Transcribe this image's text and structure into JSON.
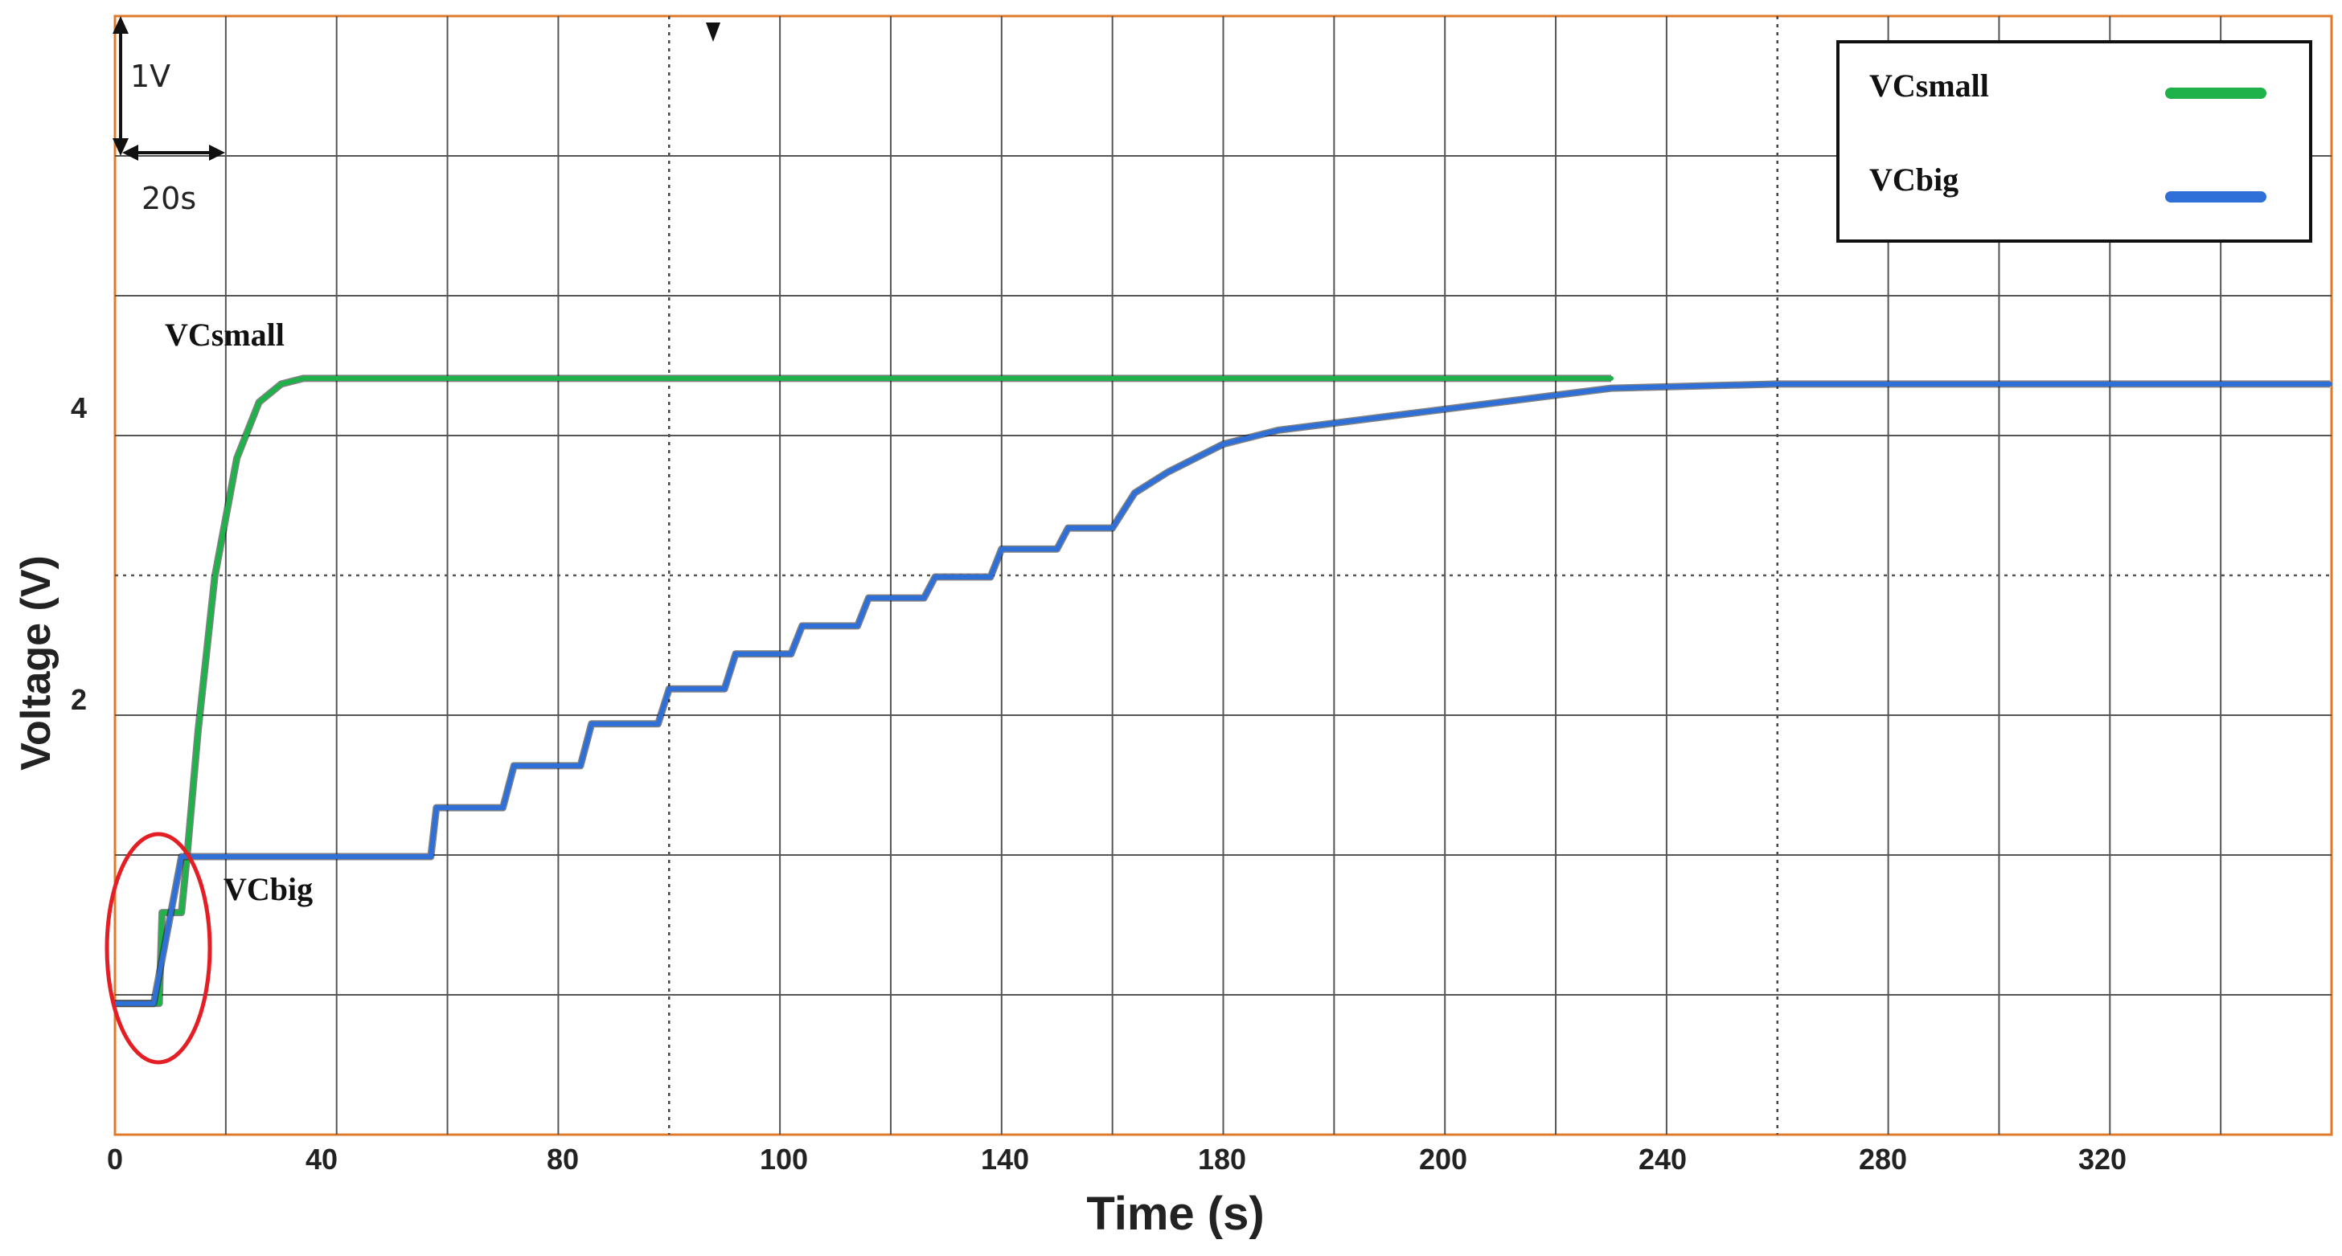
{
  "chart_data": {
    "type": "line",
    "xlabel": "Time (s)",
    "ylabel": "Voltage  (V)",
    "x_ticks": [
      "0",
      "40",
      "80",
      "100",
      "140",
      "180",
      "200",
      "240",
      "280",
      "320"
    ],
    "y_ticks": [
      "4",
      "2"
    ],
    "scale": {
      "voltage_per_div": "1V",
      "time_per_div": "20s"
    },
    "legend": {
      "position": "top-right"
    },
    "series": [
      {
        "name": "VCsmall",
        "color": "#1fb24a",
        "x": [
          0,
          8,
          8.5,
          12,
          13,
          15,
          18,
          22,
          26,
          30,
          34,
          40,
          80,
          120,
          160,
          200,
          240,
          270
        ],
        "y": [
          -0.05,
          -0.05,
          0.6,
          0.6,
          1.0,
          1.9,
          3.0,
          3.85,
          4.25,
          4.38,
          4.42,
          4.42,
          4.42,
          4.42,
          4.42,
          4.42,
          4.42,
          4.42
        ]
      },
      {
        "name": "VCbig",
        "color": "#2e6fd8",
        "x": [
          0,
          7,
          12,
          57,
          58,
          70,
          72,
          84,
          86,
          98,
          100,
          110,
          112,
          122,
          124,
          134,
          136,
          146,
          148,
          158,
          160,
          170,
          172,
          180,
          184,
          190,
          200,
          210,
          230,
          250,
          270,
          300,
          400
        ],
        "y": [
          -0.05,
          -0.05,
          1.0,
          1.0,
          1.35,
          1.35,
          1.65,
          1.65,
          1.95,
          1.95,
          2.2,
          2.2,
          2.45,
          2.45,
          2.65,
          2.65,
          2.85,
          2.85,
          3.0,
          3.0,
          3.2,
          3.2,
          3.35,
          3.35,
          3.6,
          3.75,
          3.95,
          4.05,
          4.15,
          4.25,
          4.35,
          4.38,
          4.38
        ]
      }
    ],
    "annotations": [
      "VCsmall",
      "VCbig"
    ]
  }
}
